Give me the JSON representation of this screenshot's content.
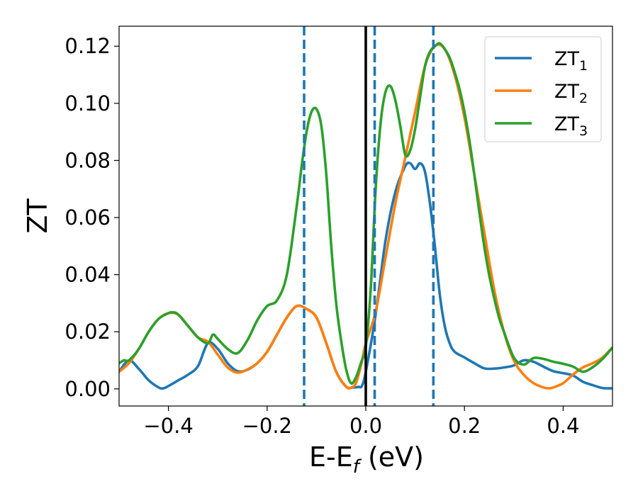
{
  "chart_data": {
    "type": "line",
    "xlabel_main": "E-E",
    "xlabel_sub": "f",
    "xlabel_unit": " (eV)",
    "ylabel": "ZT",
    "xlim": [
      -0.5,
      0.5
    ],
    "ylim": [
      -0.006,
      0.127
    ],
    "xticks": [
      -0.4,
      -0.2,
      0.0,
      0.2,
      0.4
    ],
    "xtick_labels": [
      "−0.4",
      "−0.2",
      "0.0",
      "0.2",
      "0.4"
    ],
    "yticks": [
      0.0,
      0.02,
      0.04,
      0.06,
      0.08,
      0.1,
      0.12
    ],
    "ytick_labels": [
      "0.00",
      "0.02",
      "0.04",
      "0.06",
      "0.08",
      "0.10",
      "0.12"
    ],
    "grid": false,
    "legend_position": "top-right",
    "vertical_lines": [
      {
        "x": 0.0,
        "style": "solid",
        "color": "#000000"
      },
      {
        "x": -0.125,
        "style": "dashed",
        "color": "#1f77b4"
      },
      {
        "x": 0.018,
        "style": "dashed",
        "color": "#1f77b4"
      },
      {
        "x": 0.137,
        "style": "dashed",
        "color": "#1f77b4"
      }
    ],
    "series": [
      {
        "name": "ZT",
        "sub": "1",
        "color": "#1f77b4",
        "x": [
          -0.5,
          -0.48,
          -0.46,
          -0.44,
          -0.42,
          -0.41,
          -0.4,
          -0.38,
          -0.36,
          -0.34,
          -0.32,
          -0.3,
          -0.28,
          -0.26,
          -0.24,
          -0.22,
          -0.2,
          -0.18,
          -0.16,
          -0.14,
          -0.12,
          -0.1,
          -0.08,
          -0.06,
          -0.04,
          -0.025,
          -0.015,
          -0.008,
          0.0,
          0.02,
          0.04,
          0.06,
          0.08,
          0.09,
          0.1,
          0.11,
          0.12,
          0.13,
          0.14,
          0.15,
          0.16,
          0.17,
          0.18,
          0.2,
          0.22,
          0.24,
          0.26,
          0.28,
          0.3,
          0.32,
          0.34,
          0.36,
          0.38,
          0.4,
          0.42,
          0.44,
          0.46,
          0.48,
          0.5
        ],
        "y": [
          0.006,
          0.01,
          0.007,
          0.003,
          0.0005,
          0.0002,
          0.001,
          0.003,
          0.005,
          0.008,
          0.016,
          0.014,
          0.009,
          0.0062,
          0.0067,
          0.009,
          0.013,
          0.019,
          0.025,
          0.029,
          0.028,
          0.025,
          0.016,
          0.006,
          0.0008,
          0.0005,
          0.0007,
          0.001,
          0.006,
          0.026,
          0.052,
          0.069,
          0.078,
          0.079,
          0.077,
          0.079,
          0.076,
          0.065,
          0.05,
          0.033,
          0.022,
          0.016,
          0.013,
          0.011,
          0.009,
          0.0072,
          0.0071,
          0.0075,
          0.0082,
          0.01,
          0.0095,
          0.0078,
          0.0062,
          0.0055,
          0.0047,
          0.0025,
          0.0013,
          0.0003,
          0.0002
        ]
      },
      {
        "name": "ZT",
        "sub": "2",
        "color": "#ff7f0e",
        "x": [
          -0.5,
          -0.48,
          -0.46,
          -0.44,
          -0.42,
          -0.4,
          -0.38,
          -0.36,
          -0.34,
          -0.32,
          -0.3,
          -0.28,
          -0.26,
          -0.24,
          -0.22,
          -0.2,
          -0.18,
          -0.16,
          -0.14,
          -0.12,
          -0.1,
          -0.08,
          -0.06,
          -0.04,
          -0.03,
          -0.02,
          -0.01,
          0.0,
          0.02,
          0.04,
          0.06,
          0.08,
          0.1,
          0.12,
          0.14,
          0.16,
          0.18,
          0.2,
          0.22,
          0.24,
          0.26,
          0.28,
          0.3,
          0.32,
          0.34,
          0.36,
          0.37,
          0.38,
          0.4,
          0.42,
          0.44,
          0.46,
          0.48,
          0.5
        ],
        "y": [
          0.006,
          0.009,
          0.014,
          0.02,
          0.0245,
          0.0265,
          0.026,
          0.022,
          0.018,
          0.0165,
          0.012,
          0.0075,
          0.0057,
          0.0068,
          0.009,
          0.013,
          0.019,
          0.025,
          0.029,
          0.028,
          0.025,
          0.016,
          0.006,
          0.0008,
          0.0004,
          0.002,
          0.008,
          0.016,
          0.027,
          0.046,
          0.065,
          0.081,
          0.097,
          0.113,
          0.12,
          0.119,
          0.11,
          0.095,
          0.075,
          0.055,
          0.035,
          0.02,
          0.01,
          0.005,
          0.002,
          0.0005,
          0.0002,
          0.0005,
          0.002,
          0.005,
          0.0075,
          0.009,
          0.011,
          0.0145
        ]
      },
      {
        "name": "ZT",
        "sub": "3",
        "color": "#2ca02c",
        "x": [
          -0.5,
          -0.49,
          -0.48,
          -0.46,
          -0.44,
          -0.42,
          -0.4,
          -0.39,
          -0.38,
          -0.36,
          -0.34,
          -0.32,
          -0.31,
          -0.3,
          -0.28,
          -0.26,
          -0.24,
          -0.22,
          -0.2,
          -0.18,
          -0.16,
          -0.14,
          -0.13,
          -0.12,
          -0.11,
          -0.1,
          -0.09,
          -0.08,
          -0.07,
          -0.06,
          -0.05,
          -0.04,
          -0.03,
          -0.02,
          -0.01,
          0.0,
          0.01,
          0.02,
          0.03,
          0.04,
          0.05,
          0.06,
          0.07,
          0.08,
          0.09,
          0.1,
          0.11,
          0.12,
          0.13,
          0.14,
          0.15,
          0.16,
          0.17,
          0.18,
          0.19,
          0.2,
          0.21,
          0.22,
          0.23,
          0.24,
          0.25,
          0.26,
          0.27,
          0.28,
          0.3,
          0.32,
          0.34,
          0.36,
          0.38,
          0.4,
          0.42,
          0.44,
          0.46,
          0.48,
          0.5
        ],
        "y": [
          0.009,
          0.01,
          0.01,
          0.014,
          0.02,
          0.0245,
          0.0265,
          0.0268,
          0.026,
          0.022,
          0.018,
          0.016,
          0.019,
          0.0175,
          0.014,
          0.0125,
          0.017,
          0.024,
          0.029,
          0.031,
          0.04,
          0.064,
          0.078,
          0.09,
          0.097,
          0.098,
          0.092,
          0.075,
          0.05,
          0.03,
          0.017,
          0.007,
          0.002,
          0.004,
          0.009,
          0.015,
          0.035,
          0.07,
          0.093,
          0.104,
          0.106,
          0.101,
          0.092,
          0.082,
          0.0835,
          0.091,
          0.102,
          0.113,
          0.118,
          0.12,
          0.121,
          0.119,
          0.116,
          0.111,
          0.105,
          0.097,
          0.087,
          0.075,
          0.062,
          0.05,
          0.04,
          0.032,
          0.025,
          0.02,
          0.011,
          0.0085,
          0.0108,
          0.0105,
          0.0095,
          0.0088,
          0.0078,
          0.006,
          0.0076,
          0.0105,
          0.0145
        ]
      }
    ]
  }
}
